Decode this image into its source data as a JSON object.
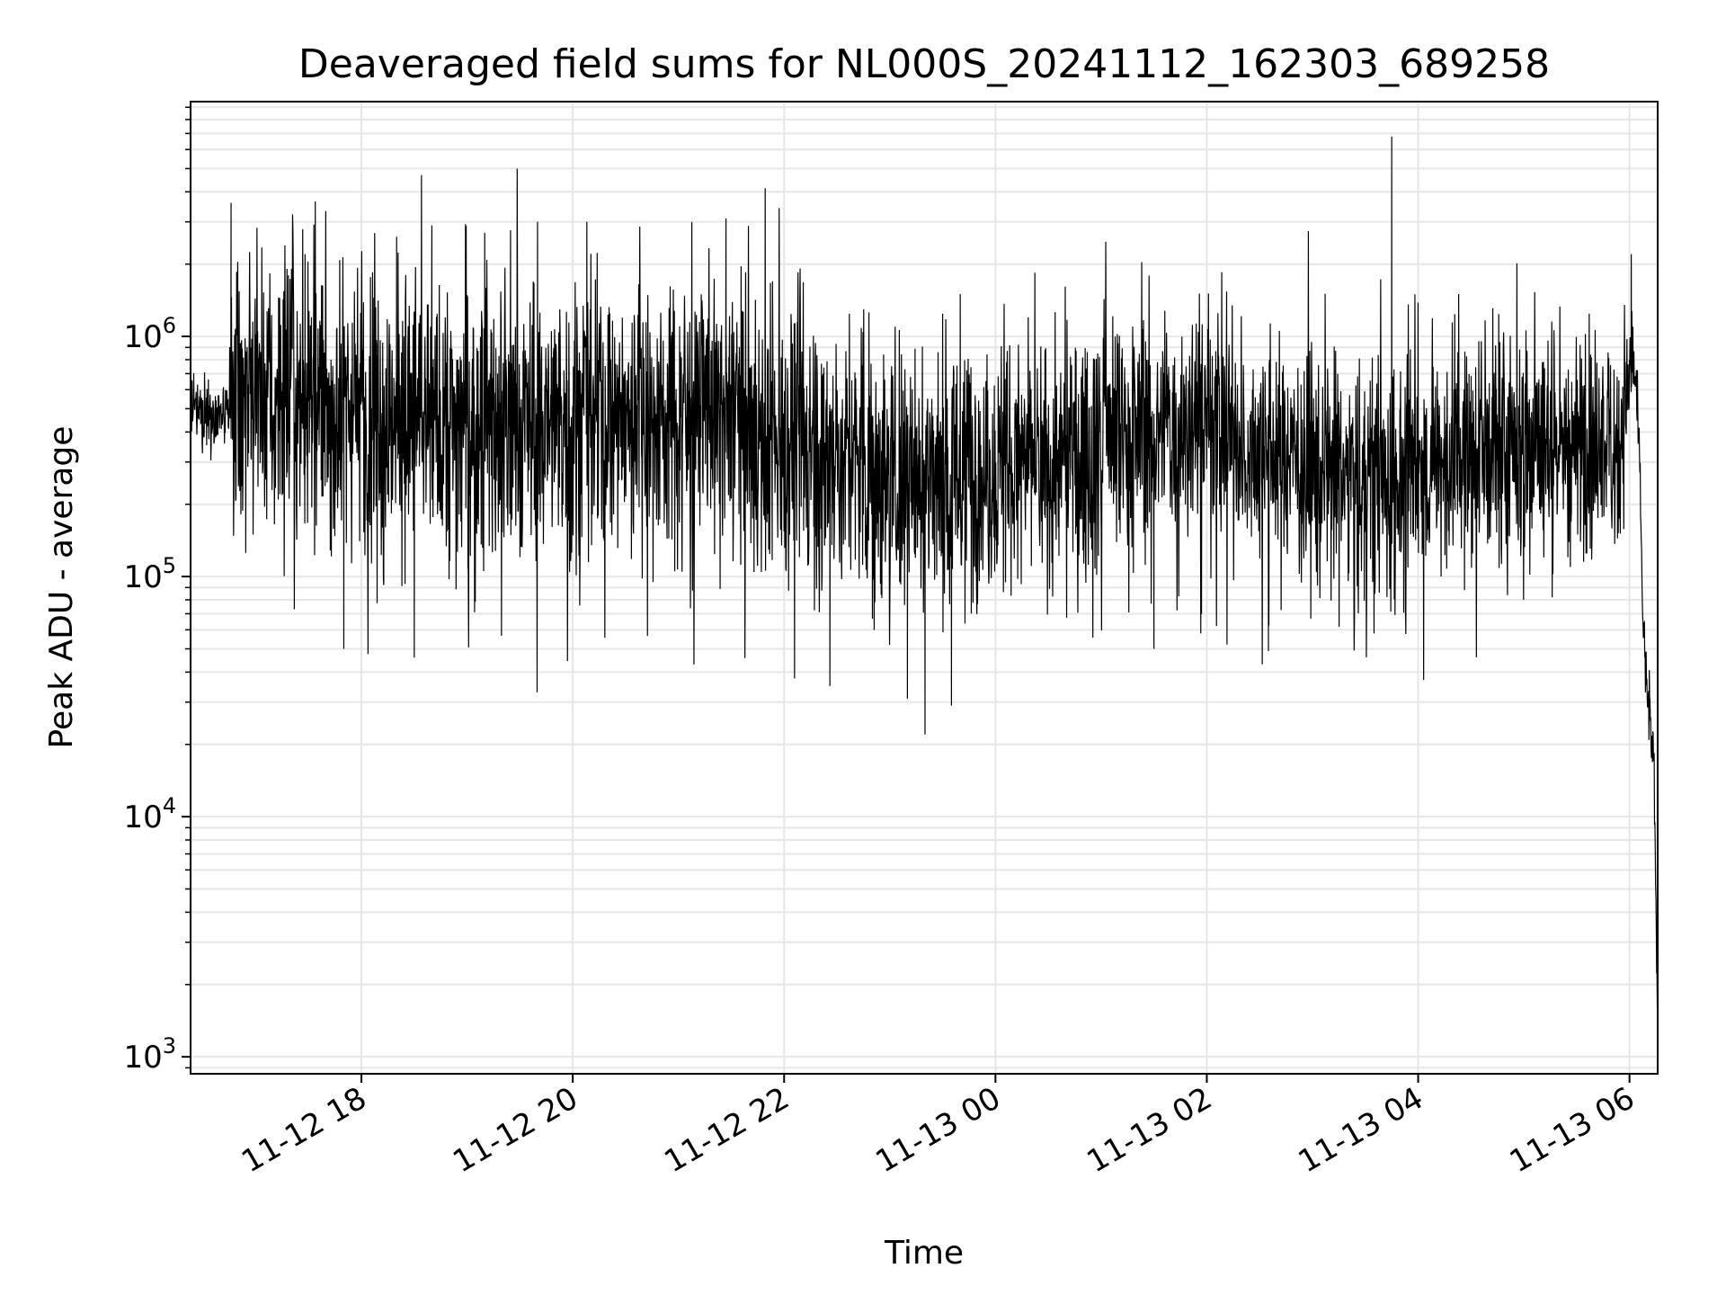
{
  "chart_data": {
    "type": "line",
    "title": "Deaveraged field sums for NL000S_20241112_162303_689258",
    "xlabel": "Time",
    "ylabel": "Peak ADU - average",
    "yscale": "log",
    "ylim": [
      850,
      9500000
    ],
    "xlim": [
      "2024-11-12 16:23",
      "2024-11-13 06:16"
    ],
    "grid": true,
    "line_color": "#000000",
    "grid_color": "#e6e6e6",
    "x_ticks": [
      {
        "value": "2024-11-12 18:00",
        "label": "11-12 18"
      },
      {
        "value": "2024-11-12 20:00",
        "label": "11-12 20"
      },
      {
        "value": "2024-11-12 22:00",
        "label": "11-12 22"
      },
      {
        "value": "2024-11-13 00:00",
        "label": "11-13 00"
      },
      {
        "value": "2024-11-13 02:00",
        "label": "11-13 02"
      },
      {
        "value": "2024-11-13 04:00",
        "label": "11-13 04"
      },
      {
        "value": "2024-11-13 06:00",
        "label": "11-13 06"
      }
    ],
    "y_ticks": [
      {
        "value": 1000,
        "base": "10",
        "exp": "3"
      },
      {
        "value": 10000,
        "base": "10",
        "exp": "4"
      },
      {
        "value": 100000,
        "base": "10",
        "exp": "5"
      },
      {
        "value": 1000000,
        "base": "10",
        "exp": "6"
      }
    ],
    "series": [
      {
        "level_profile": [
          {
            "t": "2024-11-12 16:23",
            "median": 480000,
            "spread": 0.12
          },
          {
            "t": "2024-11-12 16:45",
            "median": 460000,
            "spread": 0.12
          },
          {
            "t": "2024-11-12 16:46",
            "median": 560000,
            "spread": 0.5
          },
          {
            "t": "2024-11-12 19:00",
            "median": 420000,
            "spread": 0.55
          },
          {
            "t": "2024-11-12 21:30",
            "median": 480000,
            "spread": 0.5
          },
          {
            "t": "2024-11-12 23:00",
            "median": 260000,
            "spread": 0.5
          },
          {
            "t": "2024-11-13 00:30",
            "median": 300000,
            "spread": 0.45
          },
          {
            "t": "2024-11-13 02:00",
            "median": 450000,
            "spread": 0.45
          },
          {
            "t": "2024-11-13 03:30",
            "median": 230000,
            "spread": 0.45
          },
          {
            "t": "2024-11-13 04:30",
            "median": 330000,
            "spread": 0.45
          },
          {
            "t": "2024-11-13 05:55",
            "median": 370000,
            "spread": 0.4
          },
          {
            "t": "2024-11-13 06:02",
            "median": 900000,
            "spread": 0.2
          },
          {
            "t": "2024-11-13 06:06",
            "median": 300000,
            "spread": 0.1
          },
          {
            "t": "2024-11-13 06:07",
            "median": 90000,
            "spread": 0.1
          },
          {
            "t": "2024-11-13 06:09",
            "median": 40000,
            "spread": 0.12
          },
          {
            "t": "2024-11-13 06:14",
            "median": 15000,
            "spread": 0.1
          },
          {
            "t": "2024-11-13 06:16",
            "median": 1200,
            "spread": 0.05
          }
        ],
        "spikes": [
          {
            "t": "2024-11-12 16:46",
            "value": 3600000
          },
          {
            "t": "2024-11-12 17:28",
            "value": 2200000
          },
          {
            "t": "2024-11-12 18:20",
            "value": 2600000
          },
          {
            "t": "2024-11-12 18:40",
            "value": 2900000
          },
          {
            "t": "2024-11-12 19:10",
            "value": 2700000
          },
          {
            "t": "2024-11-12 19:40",
            "value": 3000000
          },
          {
            "t": "2024-11-12 20:08",
            "value": 3000000
          },
          {
            "t": "2024-11-12 21:27",
            "value": 3100000
          },
          {
            "t": "2024-11-12 23:40",
            "value": 1500000
          },
          {
            "t": "2024-11-13 03:45",
            "value": 6800000
          },
          {
            "t": "2024-11-13 04:23",
            "value": 1500000
          },
          {
            "t": "2024-11-13 06:01",
            "value": 2200000
          }
        ],
        "dips": [
          {
            "t": "2024-11-12 17:50",
            "value": 50000
          },
          {
            "t": "2024-11-12 18:30",
            "value": 46000
          },
          {
            "t": "2024-11-12 22:26",
            "value": 35000
          },
          {
            "t": "2024-11-12 23:10",
            "value": 31000
          },
          {
            "t": "2024-11-12 23:20",
            "value": 22000
          },
          {
            "t": "2024-11-12 23:35",
            "value": 29000
          },
          {
            "t": "2024-11-13 01:30",
            "value": 50000
          },
          {
            "t": "2024-11-13 02:35",
            "value": 49000
          }
        ]
      }
    ]
  }
}
